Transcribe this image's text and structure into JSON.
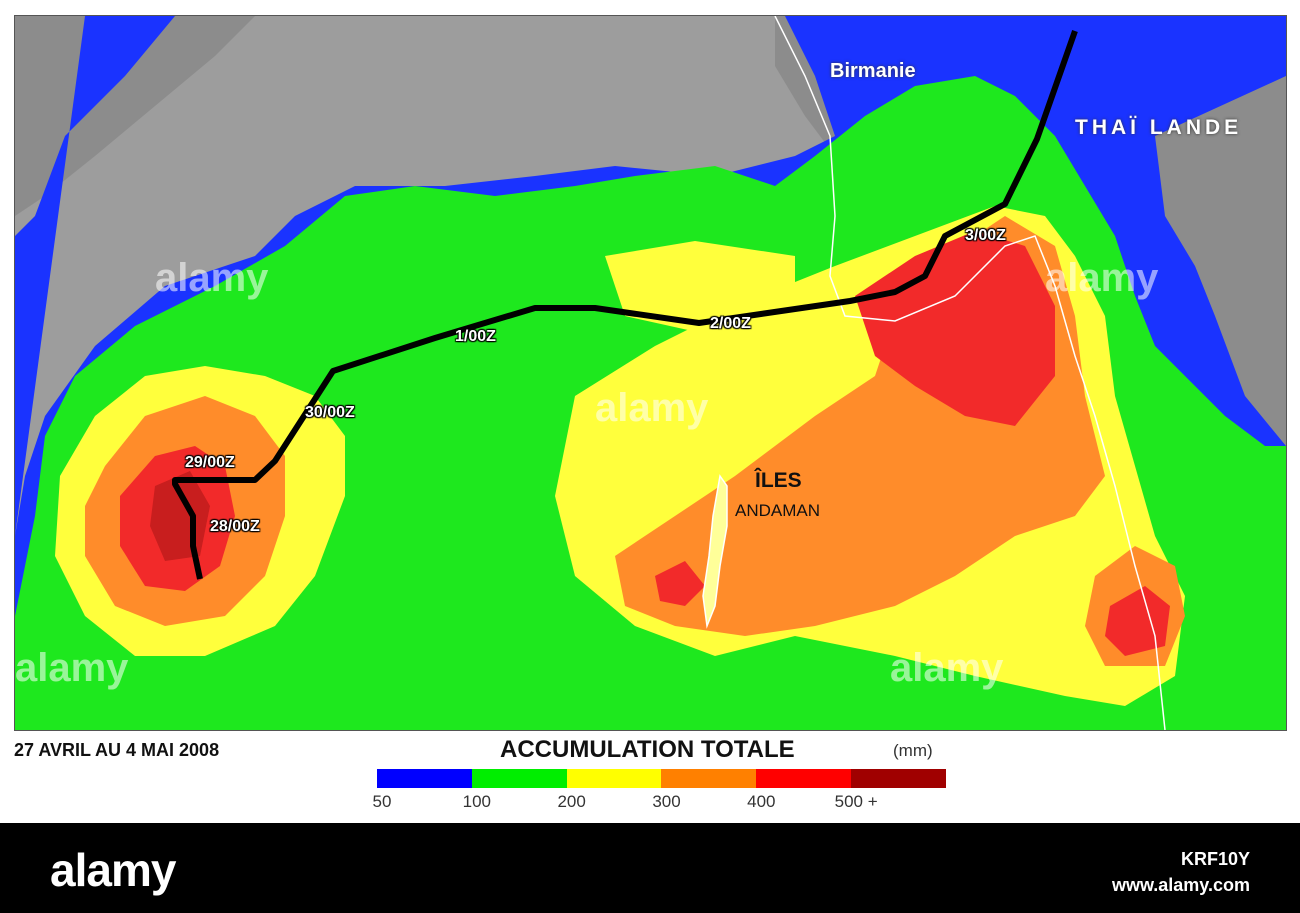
{
  "map": {
    "places": {
      "birmanie": "Birmanie",
      "thailande": "THAÏ LANDE",
      "iles": "ÎLES",
      "andaman": "ANDAMAN"
    },
    "track_labels": [
      "28/00Z",
      "29/00Z",
      "30/00Z",
      "1/00Z",
      "2/00Z",
      "3/00Z"
    ],
    "track_icon": "cyclone-icon"
  },
  "footer_caption": {
    "date_range": "27 AVRIL AU 4 MAI 2008"
  },
  "legend": {
    "title": "ACCUMULATION TOTALE",
    "unit": "(mm)",
    "ticks": [
      "50",
      "100",
      "200",
      "300",
      "400",
      "500 +"
    ],
    "colors": [
      "#0000ff",
      "#00ee00",
      "#ffff00",
      "#ff8000",
      "#ff0000",
      "#a00000"
    ]
  },
  "colors": {
    "sea": "#9d9d9d",
    "land": "#8a8a8a",
    "blue": "#1a33ff",
    "green": "#1ee81e",
    "yellow": "#ffff3c",
    "orange": "#ff8c2a",
    "red": "#f22a2a",
    "darkred": "#c81e1e",
    "track": "#000000"
  },
  "watermarks": [
    "alamy",
    "a"
  ],
  "footer": {
    "logo": "alamy",
    "image_id": "KRF10Y",
    "site": "www.alamy.com"
  }
}
